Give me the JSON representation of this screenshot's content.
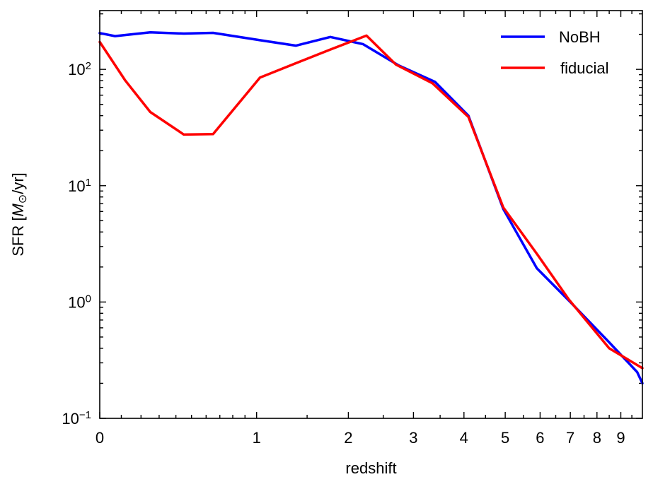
{
  "chart_data": {
    "type": "line",
    "title": "",
    "xlabel": "redshift",
    "ylabel_prefix": "SFR [",
    "ylabel_symbol": "M",
    "ylabel_suffix": "/yr]",
    "yscale": "log",
    "xscale": "log(1+z)",
    "xlim": [
      0,
      10
    ],
    "ylim": [
      0.1,
      320
    ],
    "x_ticks": [
      {
        "value": 0,
        "label": "0"
      },
      {
        "value": 1,
        "label": "1"
      },
      {
        "value": 2,
        "label": "2"
      },
      {
        "value": 3,
        "label": "3"
      },
      {
        "value": 4,
        "label": "4"
      },
      {
        "value": 5,
        "label": "5"
      },
      {
        "value": 6,
        "label": "6"
      },
      {
        "value": 7,
        "label": "7"
      },
      {
        "value": 8,
        "label": "8"
      },
      {
        "value": 9,
        "label": "9"
      }
    ],
    "y_ticks": [
      {
        "value": 0.1,
        "base": "10",
        "exp": "−1"
      },
      {
        "value": 1,
        "base": "10",
        "exp": "0"
      },
      {
        "value": 10,
        "base": "10",
        "exp": "1"
      },
      {
        "value": 100,
        "base": "10",
        "exp": "2"
      }
    ],
    "legend_position": "top-right",
    "series": [
      {
        "name": "NoBH",
        "color": "#0000ff",
        "points": [
          [
            0,
            205
          ],
          [
            0.07,
            193
          ],
          [
            0.25,
            208
          ],
          [
            0.45,
            203
          ],
          [
            0.65,
            206
          ],
          [
            1.03,
            178
          ],
          [
            1.38,
            160
          ],
          [
            1.77,
            190
          ],
          [
            2.2,
            165
          ],
          [
            2.75,
            108
          ],
          [
            3.4,
            78
          ],
          [
            4.1,
            40
          ],
          [
            4.95,
            6.3
          ],
          [
            5.9,
            1.95
          ],
          [
            7.0,
            1.0
          ],
          [
            8.5,
            0.45
          ],
          [
            9.75,
            0.25
          ],
          [
            10.0,
            0.2
          ]
        ]
      },
      {
        "name": "fiducial",
        "color": "#ff0000",
        "points": [
          [
            0,
            172
          ],
          [
            0.12,
            80
          ],
          [
            0.25,
            43
          ],
          [
            0.45,
            27.5
          ],
          [
            0.65,
            27.8
          ],
          [
            1.03,
            85
          ],
          [
            1.38,
            113
          ],
          [
            1.77,
            148
          ],
          [
            2.25,
            195
          ],
          [
            2.7,
            110
          ],
          [
            3.35,
            76
          ],
          [
            4.1,
            39
          ],
          [
            4.95,
            6.5
          ],
          [
            5.9,
            2.6
          ],
          [
            6.95,
            1.05
          ],
          [
            8.5,
            0.4
          ],
          [
            10.0,
            0.27
          ]
        ]
      }
    ]
  }
}
